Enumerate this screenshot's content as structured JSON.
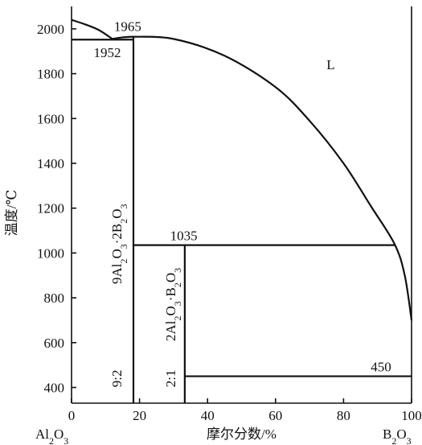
{
  "chart_data": {
    "type": "line",
    "ylabel": "温度/℃",
    "xlabel": "摩尔分数/%",
    "xlim": [
      0,
      100
    ],
    "ylim": [
      330,
      2100
    ],
    "x_ticks": [
      "0",
      "20",
      "40",
      "60",
      "80",
      "100"
    ],
    "y_ticks": [
      "400",
      "600",
      "800",
      "1000",
      "1200",
      "1400",
      "1600",
      "1800",
      "2000"
    ],
    "x_end_left": "Al2O3",
    "x_end_right": "B2O3",
    "region_labels": [
      "L"
    ],
    "compounds": [
      {
        "formula": "9Al2O3·2B2O3",
        "ratio": "9:2",
        "x": 18.2
      },
      {
        "formula": "2Al2O3·B2O3",
        "ratio": "2:1",
        "x": 33.3
      }
    ],
    "temperatures": [
      {
        "label": "1965",
        "value": 1965
      },
      {
        "label": "1952",
        "value": 1952
      },
      {
        "label": "1035",
        "value": 1035
      },
      {
        "label": "450",
        "value": 450
      }
    ],
    "series": [
      {
        "points": [
          [
            0,
            2040
          ],
          [
            4,
            2020
          ],
          [
            8,
            1995
          ],
          [
            12,
            1955
          ]
        ]
      },
      {
        "points": [
          [
            12,
            1955
          ],
          [
            15,
            1962
          ],
          [
            18.2,
            1965
          ]
        ]
      },
      {
        "points": [
          [
            18.2,
            1965
          ],
          [
            30,
            1955
          ],
          [
            45,
            1880
          ],
          [
            60,
            1740
          ],
          [
            70,
            1590
          ],
          [
            80,
            1400
          ],
          [
            88,
            1210
          ],
          [
            95,
            1040
          ],
          [
            98,
            900
          ],
          [
            100,
            700
          ]
        ]
      },
      {
        "points": [
          [
            0,
            1952
          ],
          [
            18.2,
            1952
          ]
        ]
      },
      {
        "points": [
          [
            18.2,
            1035
          ],
          [
            95,
            1035
          ]
        ]
      },
      {
        "points": [
          [
            33.3,
            450
          ],
          [
            100,
            450
          ]
        ]
      },
      {
        "points": [
          [
            18.2,
            1965
          ],
          [
            18.2,
            330
          ]
        ]
      },
      {
        "points": [
          [
            33.3,
            1035
          ],
          [
            33.3,
            330
          ]
        ]
      }
    ]
  }
}
